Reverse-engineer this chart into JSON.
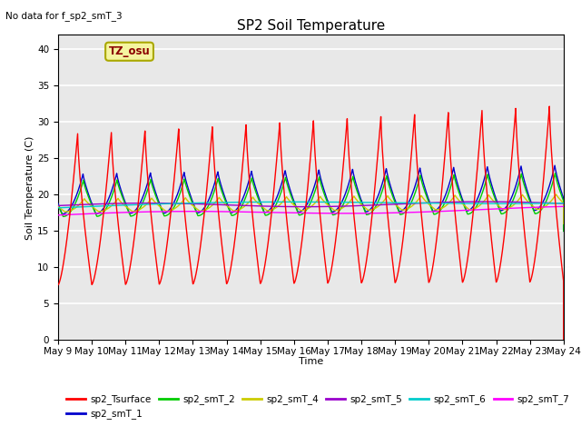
{
  "title": "SP2 Soil Temperature",
  "xlabel": "Time",
  "ylabel": "Soil Temperature (C)",
  "note": "No data for f_sp2_smT_3",
  "tz_label": "TZ_osu",
  "ylim": [
    0,
    42
  ],
  "yticks": [
    0,
    5,
    10,
    15,
    20,
    25,
    30,
    35,
    40
  ],
  "x_tick_labels": [
    "May 9",
    "May 10",
    "May 11",
    "May 12",
    "May 13",
    "May 14",
    "May 15",
    "May 16",
    "May 17",
    "May 18",
    "May 19",
    "May 20",
    "May 21",
    "May 22",
    "May 23",
    "May 24"
  ],
  "series_colors": {
    "sp2_Tsurface": "#ff0000",
    "sp2_smT_1": "#0000cc",
    "sp2_smT_2": "#00cc00",
    "sp2_smT_4": "#cccc00",
    "sp2_smT_5": "#9900cc",
    "sp2_smT_6": "#00cccc",
    "sp2_smT_7": "#ff00ff"
  },
  "plot_bg_color": "#e8e8e8",
  "grid_color": "#ffffff"
}
